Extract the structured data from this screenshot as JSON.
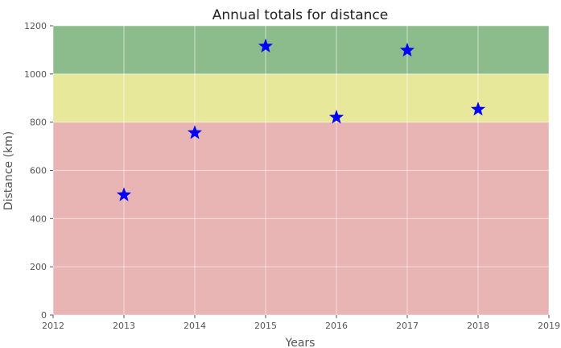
{
  "chart_data": {
    "type": "scatter",
    "title": "Annual totals for distance",
    "xlabel": "Years",
    "ylabel": "Distance (km)",
    "xlim": [
      2012,
      2019
    ],
    "ylim": [
      0,
      1200
    ],
    "x_ticks": [
      2012,
      2013,
      2014,
      2015,
      2016,
      2017,
      2018,
      2019
    ],
    "y_ticks": [
      0,
      200,
      400,
      600,
      800,
      1000,
      1200
    ],
    "grid": true,
    "marker": "star",
    "marker_color": "#0000ff",
    "bands": [
      {
        "from": 0,
        "to": 800,
        "color": "#e8b4b4"
      },
      {
        "from": 800,
        "to": 1000,
        "color": "#e8e89a"
      },
      {
        "from": 1000,
        "to": 1200,
        "color": "#8cbc8c"
      }
    ],
    "series": [
      {
        "x": [
          2013,
          2014,
          2015,
          2016,
          2017,
          2018
        ],
        "y": [
          498,
          756,
          1115,
          820,
          1098,
          853
        ]
      }
    ]
  }
}
